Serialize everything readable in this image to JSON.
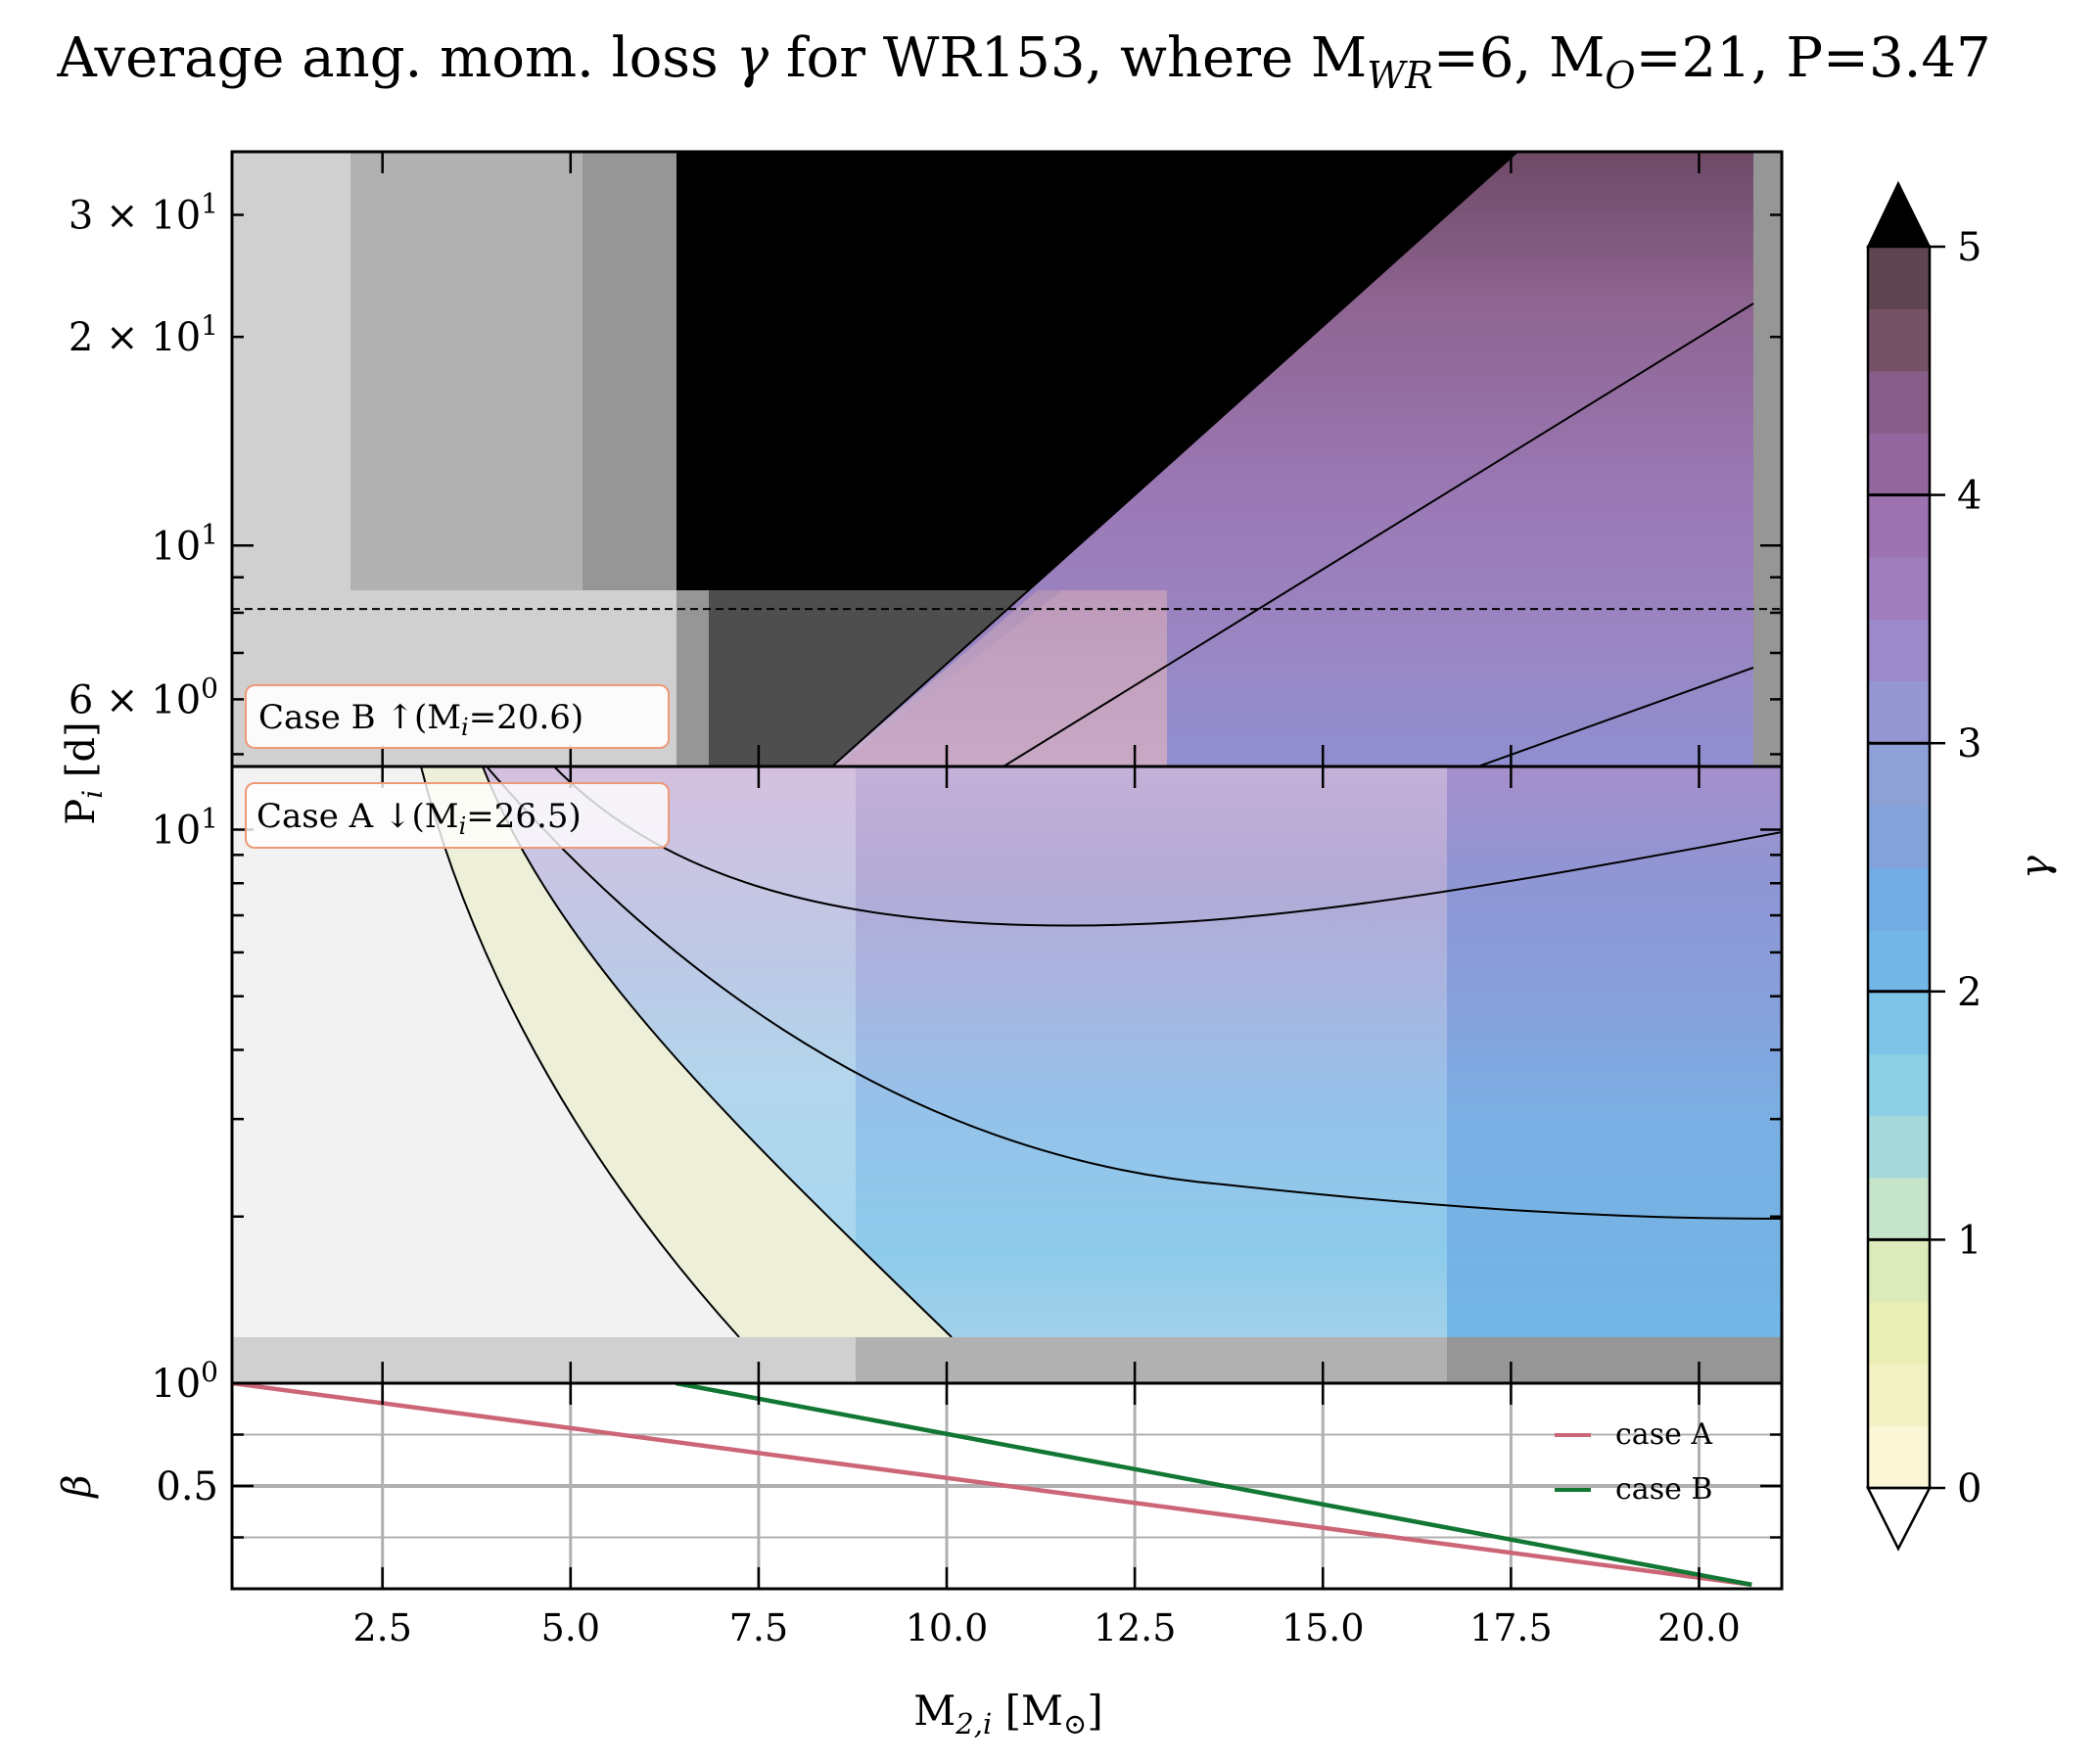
{
  "title": "Average ang. mom. loss γ for WR153, where M_WR=6, M_O=21, P=3.47",
  "title_parts": {
    "pre": "Average ang. mom. loss ",
    "gamma": "γ",
    "mid1": " for WR153, where M",
    "sub_wr": "WR",
    "mid2": "=6, M",
    "sub_o": "O",
    "post": "=21, P=3.47"
  },
  "colors": {
    "case_a": "#cc6677",
    "case_b": "#117733",
    "grid": "#b0b0b0"
  },
  "chart_data": [
    {
      "panel": "case B",
      "type": "heatmap",
      "ylabel": "P_i [d]",
      "ylabel_parts": {
        "main": "P",
        "sub": "i",
        "unit": " [d]"
      },
      "yscale": "log",
      "ylim": [
        4.8,
        37
      ],
      "yticks": [
        {
          "value": 30,
          "mant": "3 × 10",
          "exp": "1"
        },
        {
          "value": 20,
          "mant": "2 × 10",
          "exp": "1"
        },
        {
          "value": 10,
          "mant": "10",
          "exp": "1"
        },
        {
          "value": 6,
          "mant": "6 × 10",
          "exp": "0"
        }
      ],
      "label": "Case B ↑(M_i=20.6)",
      "label_parts": {
        "pre": "Case B ↑(M",
        "sub": "i",
        "post": "=20.6)"
      },
      "dashed_period": 8.1,
      "contour_levels": [
        1,
        2,
        3
      ],
      "gray_columns": [
        {
          "x_range": [
            0.5,
            2.1
          ],
          "shade": "#d0d0d0"
        },
        {
          "x_range": [
            2.1,
            5.2
          ],
          "shade": "#b1b1b1"
        },
        {
          "x_range": [
            5.2,
            6.4
          ],
          "shade": "#969696"
        },
        {
          "x_range": [
            20.7,
            21.1
          ],
          "shade": "#969696"
        }
      ],
      "gray_patches_below_dashed": [
        {
          "x_range": [
            0.5,
            6.4
          ],
          "shade": "#d0d0d0"
        },
        {
          "x_range": [
            6.4,
            6.8
          ],
          "shade": "#969696"
        },
        {
          "x_range": [
            6.8,
            11.5
          ],
          "shade": "#4e4e4e"
        }
      ]
    },
    {
      "panel": "case A",
      "type": "heatmap",
      "yscale": "log",
      "ylim": [
        1.0,
        13
      ],
      "yticks": [
        {
          "value": 10,
          "mant": "10",
          "exp": "1"
        },
        {
          "value": 1,
          "mant": "10",
          "exp": "0"
        }
      ],
      "label": "Case A ↓(M_i=26.5)",
      "label_parts": {
        "pre": "Case A ↓(M",
        "sub": "i",
        "post": "=26.5)"
      },
      "contour_levels": [
        0,
        1,
        2,
        3
      ],
      "bottom_strip_shades": [
        {
          "x_range": [
            0.5,
            8.7
          ],
          "shade": "#d0d0d0"
        },
        {
          "x_range": [
            8.7,
            16.6
          ],
          "shade": "#b1b1b1"
        },
        {
          "x_range": [
            16.6,
            21.1
          ],
          "shade": "#969696"
        }
      ]
    },
    {
      "panel": "beta",
      "type": "line",
      "xlabel": "M_2,i [M_⊙]",
      "xlabel_parts": {
        "main": "M",
        "sub": "2,i",
        "unit": " [M",
        "sun": "⊙",
        "close": "]"
      },
      "ylabel": "β",
      "xlim": [
        0.5,
        21.1
      ],
      "ylim": [
        0.0,
        1.0
      ],
      "xticks": [
        "2.5",
        "5.0",
        "7.5",
        "10.0",
        "12.5",
        "15.0",
        "17.5",
        "20.0"
      ],
      "xtick_values": [
        2.5,
        5.0,
        7.5,
        10.0,
        12.5,
        15.0,
        17.5,
        20.0
      ],
      "yticks": [
        {
          "value": 0.5,
          "label": "0.5"
        }
      ],
      "grid": true,
      "legend": "top-right",
      "series": [
        {
          "name": "case A",
          "x": [
            0.5,
            20.7
          ],
          "y": [
            1.0,
            0.02
          ]
        },
        {
          "name": "case B",
          "x": [
            6.4,
            20.7
          ],
          "y": [
            1.0,
            0.02
          ]
        }
      ]
    }
  ],
  "colorbar": {
    "label": "γ",
    "range": [
      0,
      5
    ],
    "extend": "both",
    "ticks": [
      "0",
      "1",
      "2",
      "3",
      "4",
      "5"
    ],
    "tick_values": [
      0,
      1,
      2,
      3,
      4,
      5
    ],
    "bands": [
      "#fbf6d5",
      "#f2f1c4",
      "#eaefb5",
      "#dcebb9",
      "#c7e5cb",
      "#a7d9dc",
      "#8ccfe5",
      "#7dc4e8",
      "#73b7e8",
      "#73abe4",
      "#84a2da",
      "#8ea1d7",
      "#9597d2",
      "#9c89c9",
      "#a07dbd",
      "#9c72b0",
      "#93679e",
      "#885d8a",
      "#755264",
      "#5e4550"
    ],
    "over_color": "#000000",
    "under_color": "#ffffff"
  }
}
